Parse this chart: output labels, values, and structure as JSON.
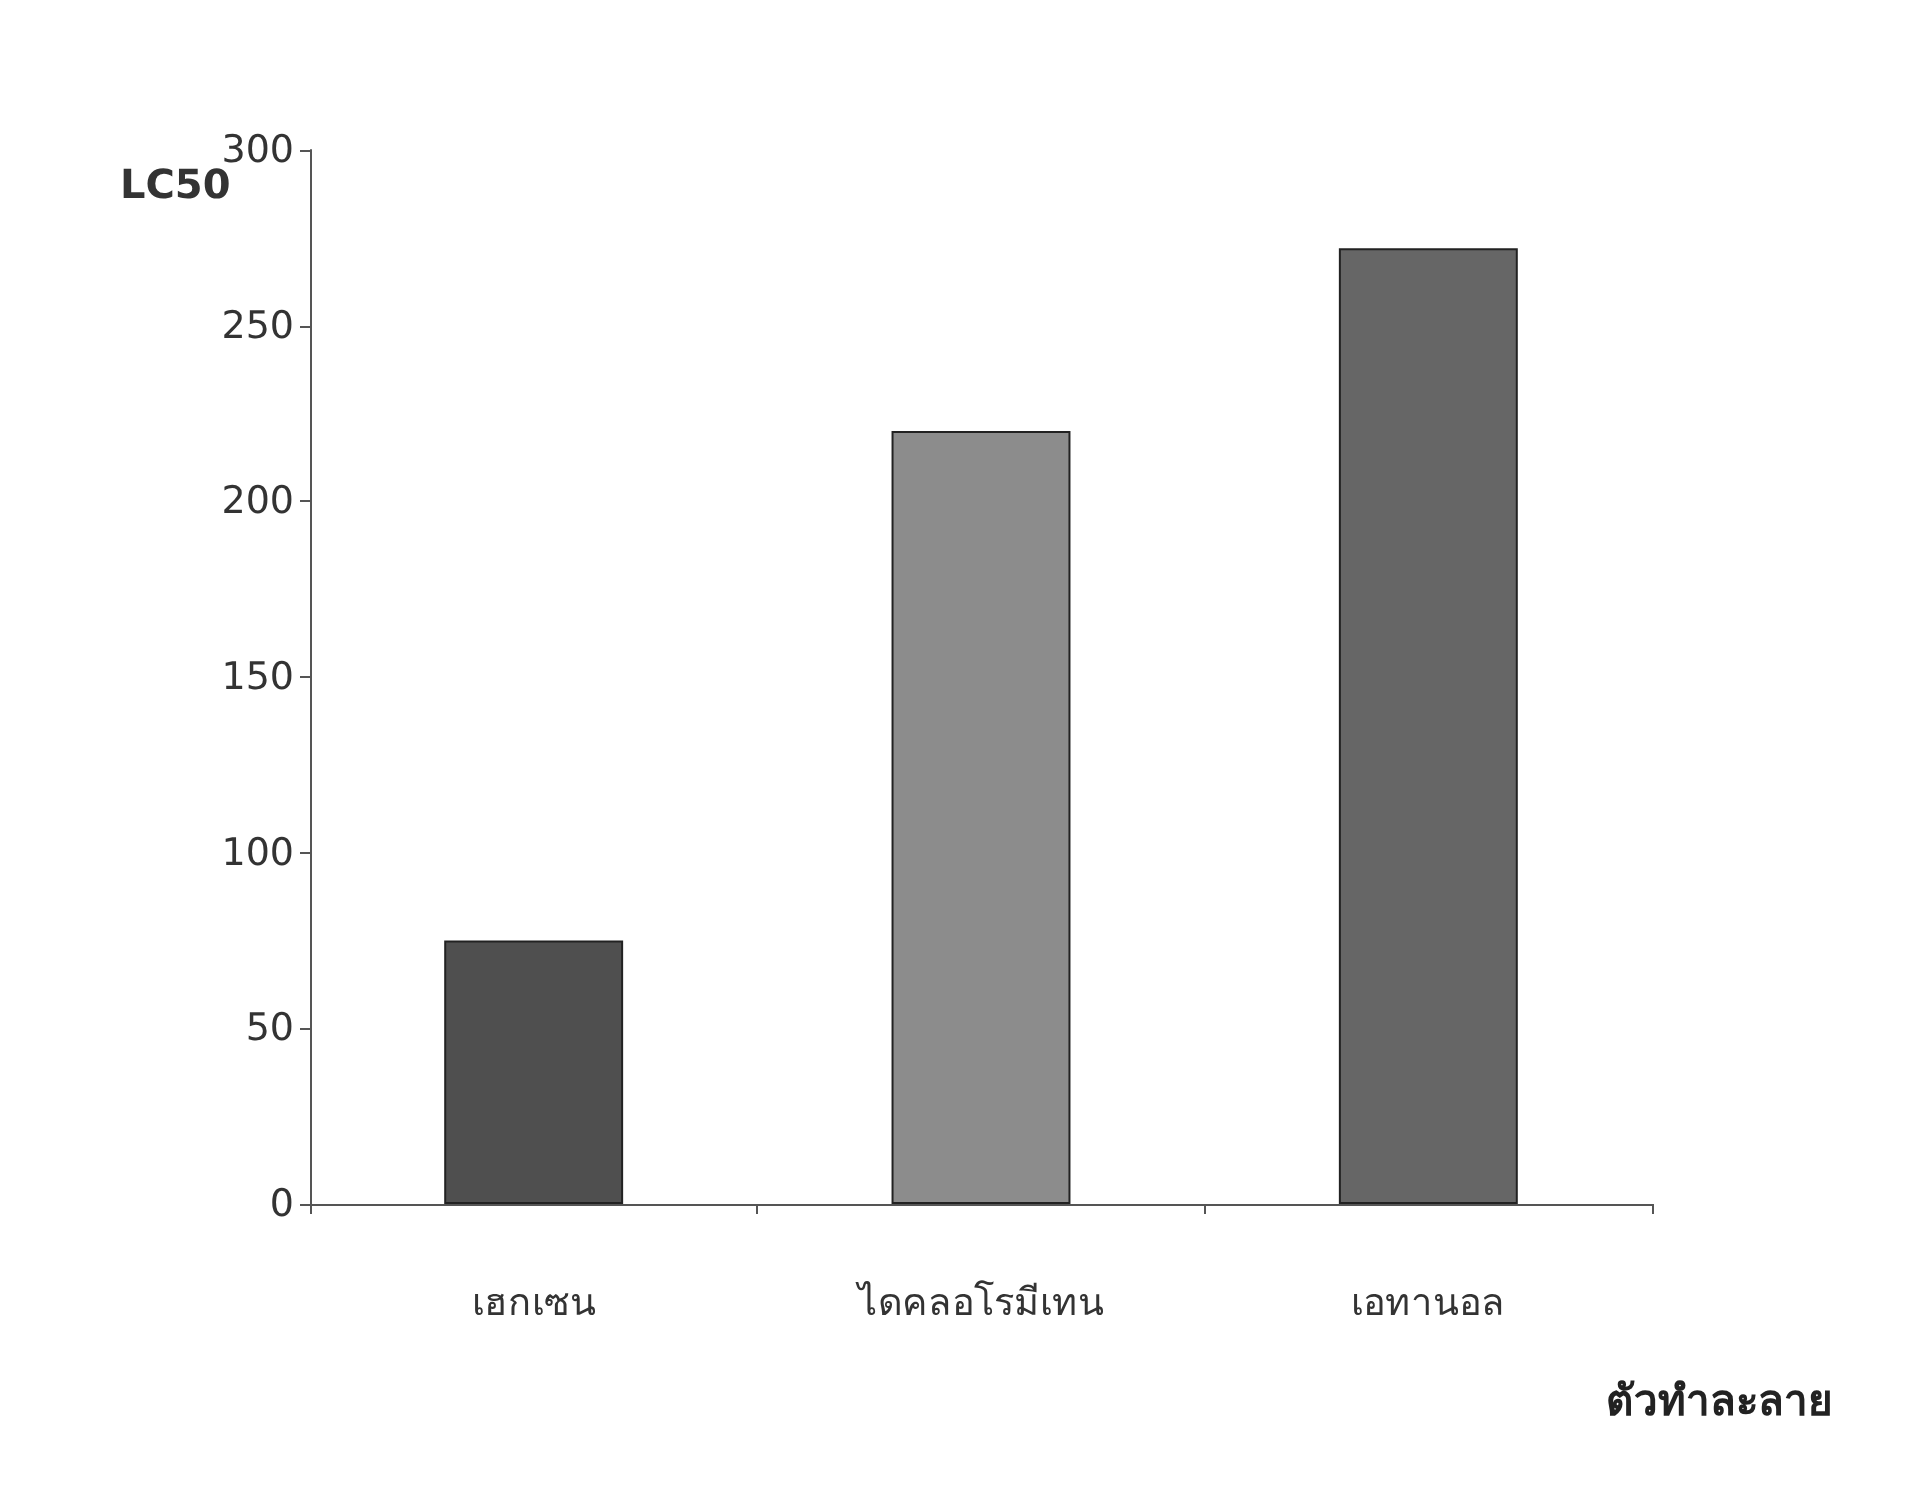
{
  "chart_data": {
    "type": "bar",
    "ylabel": "LC50",
    "xlabel": "ตัวทำละลาย",
    "categories": [
      "เฮกเซน",
      "ไดคลอโรมีเทน",
      "เอทานอล"
    ],
    "values": [
      75,
      220,
      272
    ],
    "colors": [
      "#4f4f4f",
      "#8c8c8c",
      "#666666"
    ],
    "ylim": [
      0,
      300
    ],
    "yticks": [
      0,
      50,
      100,
      150,
      200,
      250,
      300
    ],
    "grid": false
  }
}
